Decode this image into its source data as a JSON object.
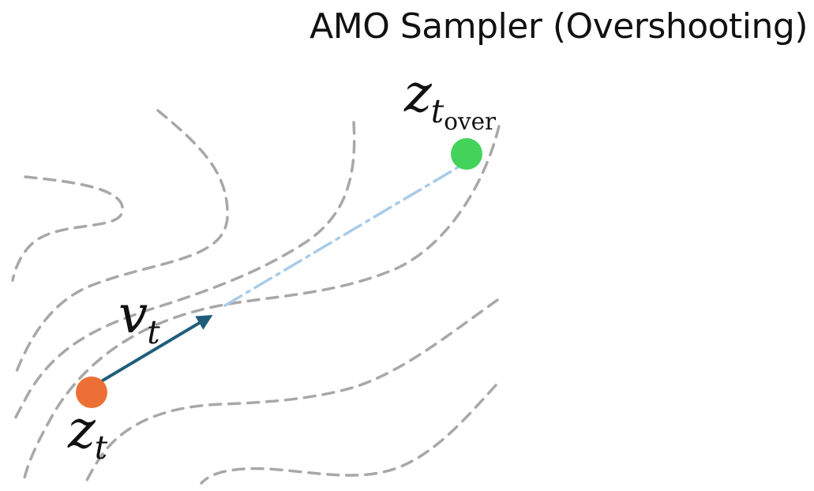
{
  "title": "AMO Sampler (Overshooting)",
  "labels": {
    "z_t": {
      "base": "z",
      "sub": "t"
    },
    "v_t": {
      "base": "v",
      "sub": "t"
    },
    "z_t_over": {
      "base": "z",
      "sub": "t",
      "subsub": "over"
    }
  },
  "colors": {
    "contour": "#a8a8a8",
    "start_point": "#ec7035",
    "end_point": "#44d35a",
    "velocity_arrow": "#1f5e7a",
    "overshoot_line": "#a9cbe8"
  }
}
